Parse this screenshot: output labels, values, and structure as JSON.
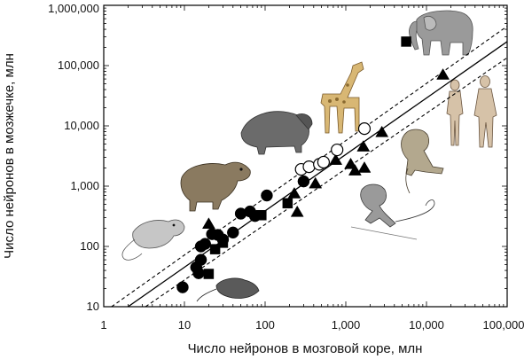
{
  "chart_data": {
    "type": "scatter",
    "title": "",
    "xlabel": "Число нейронов в мозговой коре, млн",
    "ylabel": "Число нейронов в мозжечке, млн",
    "xscale": "log",
    "yscale": "log",
    "xlim": [
      1,
      100000
    ],
    "ylim": [
      10,
      1000000
    ],
    "x_tick_labels": [
      "1",
      "10",
      "100",
      "1,000",
      "10,000",
      "100,000"
    ],
    "y_tick_labels": [
      "10",
      "100",
      "1,000",
      "10,000",
      "100,000",
      "1,000,000"
    ],
    "series": [
      {
        "name": "filled-circle",
        "marker": "circle",
        "filled": true,
        "points": [
          {
            "x": 9.5,
            "y": 21
          },
          {
            "x": 14,
            "y": 45
          },
          {
            "x": 15,
            "y": 36
          },
          {
            "x": 16,
            "y": 60
          },
          {
            "x": 16,
            "y": 100
          },
          {
            "x": 18,
            "y": 110
          },
          {
            "x": 22,
            "y": 160
          },
          {
            "x": 26,
            "y": 155
          },
          {
            "x": 30,
            "y": 130
          },
          {
            "x": 40,
            "y": 170
          },
          {
            "x": 50,
            "y": 350
          },
          {
            "x": 65,
            "y": 380
          },
          {
            "x": 75,
            "y": 320
          },
          {
            "x": 105,
            "y": 700
          },
          {
            "x": 300,
            "y": 1200
          }
        ]
      },
      {
        "name": "filled-square",
        "marker": "square",
        "filled": true,
        "points": [
          {
            "x": 20,
            "y": 35
          },
          {
            "x": 24,
            "y": 90
          },
          {
            "x": 30,
            "y": 115
          },
          {
            "x": 90,
            "y": 330
          },
          {
            "x": 190,
            "y": 520
          },
          {
            "x": 5600,
            "y": 250000
          }
        ]
      },
      {
        "name": "filled-triangle",
        "marker": "triangle",
        "filled": true,
        "points": [
          {
            "x": 20,
            "y": 235
          },
          {
            "x": 230,
            "y": 750
          },
          {
            "x": 250,
            "y": 370
          },
          {
            "x": 420,
            "y": 1100
          },
          {
            "x": 750,
            "y": 2700
          },
          {
            "x": 1150,
            "y": 2300
          },
          {
            "x": 1300,
            "y": 1800
          },
          {
            "x": 1650,
            "y": 4500
          },
          {
            "x": 1700,
            "y": 2000
          },
          {
            "x": 2800,
            "y": 7800
          },
          {
            "x": 16000,
            "y": 70000
          }
        ]
      },
      {
        "name": "open-circle",
        "marker": "circle",
        "filled": false,
        "points": [
          {
            "x": 280,
            "y": 1900
          },
          {
            "x": 350,
            "y": 2100
          },
          {
            "x": 470,
            "y": 2300
          },
          {
            "x": 530,
            "y": 2500
          },
          {
            "x": 780,
            "y": 4000
          },
          {
            "x": 1700,
            "y": 9000
          }
        ]
      }
    ],
    "lines": [
      {
        "name": "regression",
        "style": "solid",
        "from": {
          "x": 2,
          "y": 10
        },
        "to": {
          "x": 100000,
          "y": 250000
        }
      },
      {
        "name": "upper-bound",
        "style": "dashed",
        "from": {
          "x": 1.25,
          "y": 10
        },
        "to": {
          "x": 100000,
          "y": 450000
        }
      },
      {
        "name": "lower-bound",
        "style": "dashed",
        "from": {
          "x": 3.3,
          "y": 10
        },
        "to": {
          "x": 100000,
          "y": 135000
        }
      }
    ]
  },
  "illustrations": [
    {
      "name": "elephant",
      "icon": "elephant-icon"
    },
    {
      "name": "giraffe",
      "icon": "giraffe-icon"
    },
    {
      "name": "capybara",
      "icon": "capybara-icon"
    },
    {
      "name": "agouti",
      "icon": "agouti-icon"
    },
    {
      "name": "mouse",
      "icon": "mouse-icon"
    },
    {
      "name": "shrew",
      "icon": "shrew-icon"
    },
    {
      "name": "baboon",
      "icon": "baboon-icon"
    },
    {
      "name": "monkey",
      "icon": "monkey-icon"
    },
    {
      "name": "humans",
      "icon": "humans-icon"
    }
  ]
}
